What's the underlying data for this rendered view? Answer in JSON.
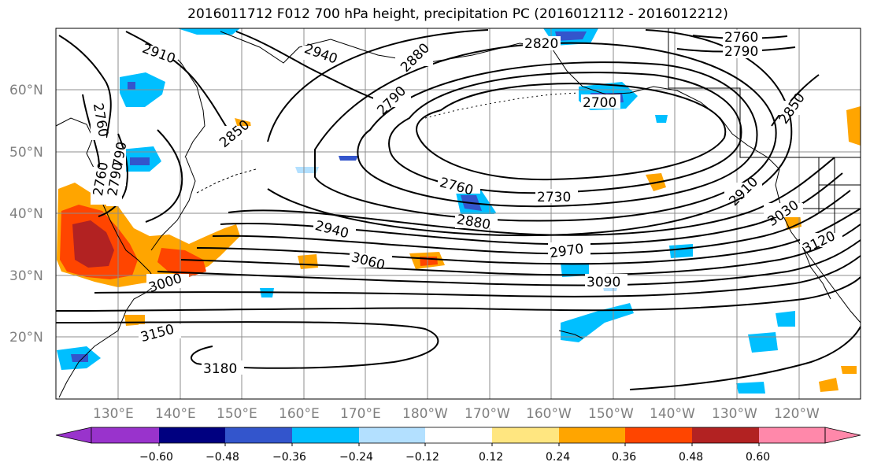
{
  "title": "2016011712 F012 700 hPa height, precipitation PC (2016012112 - 2016012212)",
  "lat_labels": [
    "60°N",
    "50°N",
    "40°N",
    "30°N",
    "20°N"
  ],
  "lon_labels": [
    "130°E",
    "140°E",
    "150°E",
    "160°E",
    "170°E",
    "180°W",
    "170°W",
    "160°W",
    "150°W",
    "140°W",
    "130°W",
    "120°W"
  ],
  "contour_labels": [
    "2910",
    "2940",
    "2880",
    "2820",
    "2760",
    "2790",
    "2790",
    "2760",
    "2790",
    "2700",
    "2850",
    "2850",
    "2760",
    "2790",
    "2760",
    "2730",
    "2880",
    "2940",
    "2970",
    "2910",
    "3030",
    "3060",
    "3000",
    "3090",
    "3120",
    "3150",
    "3180"
  ],
  "colorbar": {
    "ticks": [
      "−0.60",
      "−0.48",
      "−0.36",
      "−0.24",
      "−0.12",
      "0.12",
      "0.24",
      "0.36",
      "0.48",
      "0.60"
    ],
    "colors": [
      "#9933cc",
      "#000080",
      "#3355cc",
      "#00bfff",
      "#b3e0ff",
      "#ffffff",
      "#ffe680",
      "#ffa500",
      "#ff4500",
      "#b22222",
      "#ff88aa"
    ]
  },
  "colors": {
    "contour": "#000000",
    "coast": "#000000",
    "grid": "#8c8c8c",
    "axis_label": "#7f7f7f"
  }
}
